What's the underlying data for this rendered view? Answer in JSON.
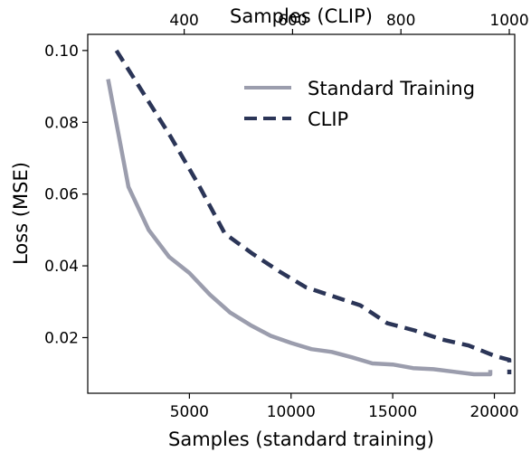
{
  "chart_data": {
    "type": "line",
    "xlabel": "Samples (standard training)",
    "x2label": "Samples (CLIP)",
    "ylabel": "Loss (MSE)",
    "xlim": [
      0,
      21000
    ],
    "x2lim": [
      222,
      1010
    ],
    "ylim": [
      0.0045,
      0.1045
    ],
    "xticks": [
      5000,
      10000,
      15000,
      20000
    ],
    "xticklabels": [
      "5000",
      "10000",
      "15000",
      "20000"
    ],
    "x2ticks": [
      400,
      600,
      800,
      1000
    ],
    "x2ticklabels": [
      "400",
      "600",
      "800",
      "1000"
    ],
    "yticks": [
      0.02,
      0.04,
      0.06,
      0.08,
      0.1
    ],
    "yticklabels": [
      "0.02",
      "0.04",
      "0.06",
      "0.08",
      "0.10"
    ],
    "grid": false,
    "legend_position": "top-right",
    "series": [
      {
        "name": "Standard Training",
        "color": "#9b9dad",
        "dash": "solid",
        "axis": "bottom",
        "x": [
          1000,
          2000,
          3000,
          4000,
          5000,
          6000,
          7000,
          8000,
          9000,
          10000,
          11000,
          12000,
          13000,
          14000,
          15000,
          16000,
          17000,
          18000,
          19000,
          19800,
          19800
        ],
        "y": [
          0.092,
          0.062,
          0.05,
          0.0425,
          0.038,
          0.032,
          0.027,
          0.0235,
          0.0205,
          0.0185,
          0.0168,
          0.016,
          0.0145,
          0.0128,
          0.0125,
          0.0115,
          0.0112,
          0.0105,
          0.0098,
          0.0098,
          0.011
        ]
      },
      {
        "name": "CLIP",
        "color": "#2b3557",
        "dash": "dashed",
        "axis": "top",
        "x": [
          275,
          325,
          375,
          425,
          475,
          525,
          575,
          625,
          675,
          725,
          775,
          825,
          875,
          925,
          975,
          1000,
          1000
        ],
        "y": [
          0.1,
          0.088,
          0.076,
          0.063,
          0.049,
          0.0435,
          0.0385,
          0.034,
          0.0315,
          0.029,
          0.024,
          0.022,
          0.0195,
          0.0178,
          0.0148,
          0.0138,
          0.0098
        ]
      }
    ]
  }
}
